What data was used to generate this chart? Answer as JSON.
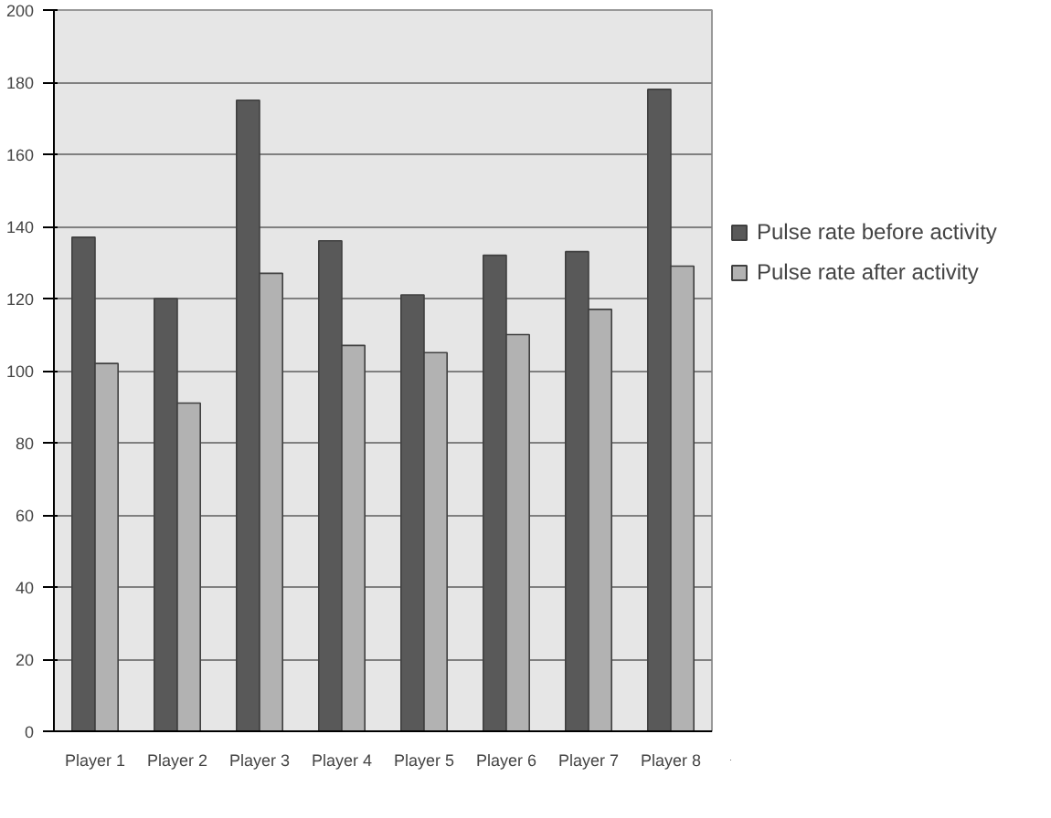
{
  "chart_data": {
    "type": "bar",
    "categories": [
      "Player 1",
      "Player 2",
      "Player 3",
      "Player 4",
      "Player 5",
      "Player 6",
      "Player 7",
      "Player 8"
    ],
    "series": [
      {
        "name": "Pulse rate before activity",
        "color": "#595959",
        "values": [
          137,
          120,
          175,
          136,
          121,
          132,
          133,
          178
        ]
      },
      {
        "name": "Pulse rate after activity",
        "color": "#b2b2b2",
        "values": [
          102,
          91,
          127,
          107,
          105,
          110,
          117,
          129
        ]
      }
    ],
    "ylim": [
      0,
      200
    ],
    "yticks": [
      0,
      20,
      40,
      60,
      80,
      100,
      120,
      140,
      160,
      180,
      200
    ],
    "grid": "y",
    "legend": "right"
  }
}
